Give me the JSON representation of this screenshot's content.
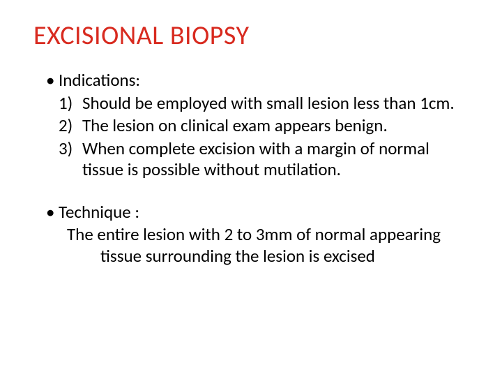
{
  "title": {
    "text": "EXCISIONAL BIOPSY",
    "color": "#d82a1f",
    "fontsize": 38
  },
  "body_color": "#000000",
  "body_fontsize": 25,
  "sections": {
    "indications": {
      "label": "Indications:",
      "items": [
        {
          "num": "1)",
          "text": "Should be employed with small lesion less than 1cm."
        },
        {
          "num": "2)",
          "text": "The lesion on clinical exam appears benign."
        },
        {
          "num": "3)",
          "text": "When complete excision with a margin of normal tissue is possible without mutilation."
        }
      ]
    },
    "technique": {
      "label": "Technique :",
      "text": "The entire lesion with 2 to 3mm of normal appearing tissue surrounding the lesion is excised"
    }
  }
}
